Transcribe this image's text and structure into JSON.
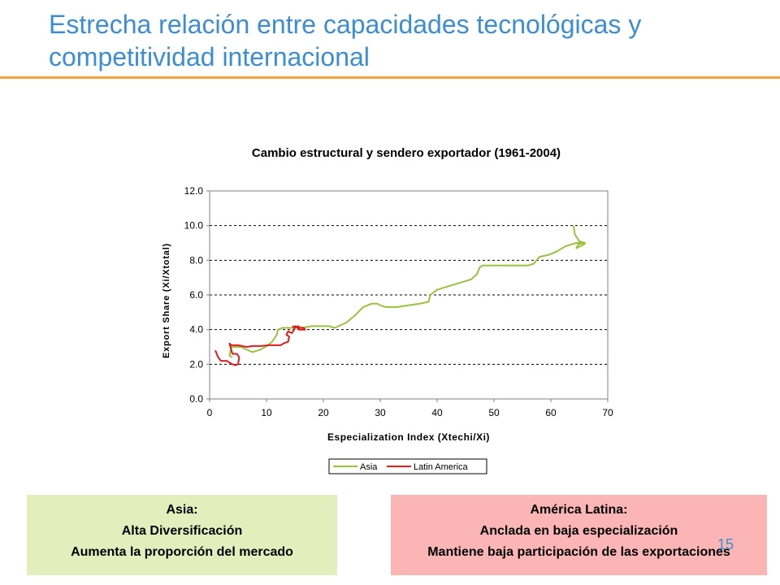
{
  "slide": {
    "title": "Estrecha relación entre capacidades tecnológicas y competitividad internacional",
    "page_number": "15"
  },
  "colors": {
    "title": "#3b8ed4",
    "accent_rule": "#f2a33a",
    "asia": "#99c23a",
    "latin_america": "#e01b1b",
    "asia_box": "#e2efbd",
    "latam_box": "#fbb5b5"
  },
  "boxes": {
    "asia": {
      "heading": "Asia:",
      "line1": "Alta Diversificación",
      "line2": "Aumenta la proporción del mercado"
    },
    "latam": {
      "heading": "América Latina:",
      "line1": "Anclada en baja especialización",
      "line2": "Mantiene baja participación de las exportaciones"
    }
  },
  "chart_data": {
    "type": "line",
    "title": "Cambio estructural y sendero exportador (1961-2004)",
    "xlabel": "Especialization Index (Xtechi/Xi)",
    "ylabel": "Export Share (Xi/Xtotal)",
    "xlim": [
      0,
      70
    ],
    "ylim": [
      0,
      12
    ],
    "xticks": [
      "0",
      "10",
      "20",
      "30",
      "40",
      "50",
      "60",
      "70"
    ],
    "yticks": [
      "0.0",
      "2.0",
      "4.0",
      "6.0",
      "8.0",
      "10.0",
      "12.0"
    ],
    "grid": "horizontal dashed",
    "legend_position": "bottom",
    "series": [
      {
        "name": "Asia",
        "x": [
          4.0,
          3.5,
          3.8,
          5.5,
          7.5,
          9.0,
          10.0,
          11.0,
          11.8,
          12.0,
          12.8,
          14.0,
          16.0,
          18.0,
          19.5,
          21.0,
          22.0,
          24.0,
          25.5,
          27.0,
          28.5,
          29.5,
          30.0,
          31.0,
          32.0,
          33.0,
          35.0,
          37.0,
          38.5,
          38.8,
          40.0,
          42.0,
          44.0,
          46.0,
          47.0,
          47.5,
          48.0,
          49.0,
          51.0,
          54.0,
          56.0,
          57.0,
          57.5,
          58.0,
          59.5,
          61.0,
          62.5,
          63.5,
          64.5,
          65.2,
          65.8,
          64.8,
          64.5,
          65.8,
          66.0,
          65.0,
          64.2,
          64.0
        ],
        "y": [
          2.4,
          2.5,
          3.0,
          3.0,
          2.7,
          2.85,
          3.05,
          3.3,
          3.7,
          4.0,
          4.1,
          4.1,
          4.1,
          4.2,
          4.2,
          4.2,
          4.1,
          4.4,
          4.8,
          5.3,
          5.5,
          5.5,
          5.4,
          5.3,
          5.3,
          5.3,
          5.4,
          5.5,
          5.6,
          6.0,
          6.3,
          6.5,
          6.7,
          6.9,
          7.2,
          7.6,
          7.7,
          7.7,
          7.7,
          7.7,
          7.7,
          7.8,
          8.0,
          8.2,
          8.3,
          8.5,
          8.8,
          8.9,
          9.0,
          9.0,
          9.0,
          8.9,
          8.7,
          8.9,
          9.0,
          9.1,
          9.5,
          10.0
        ]
      },
      {
        "name": "Latin America",
        "x": [
          1.0,
          1.5,
          2.0,
          3.0,
          4.0,
          4.5,
          5.0,
          5.2,
          4.8,
          4.0,
          3.5,
          3.8,
          5.0,
          6.5,
          7.5,
          9.0,
          10.5,
          12.0,
          12.5,
          13.0,
          13.8,
          14.0,
          13.5,
          13.8,
          14.5,
          15.0,
          15.5,
          16.0,
          16.5,
          16.8,
          15.8,
          15.5,
          15.0,
          14.5
        ],
        "y": [
          2.8,
          2.4,
          2.2,
          2.2,
          2.0,
          1.95,
          2.0,
          2.4,
          2.6,
          2.6,
          3.2,
          3.1,
          3.1,
          3.0,
          3.05,
          3.05,
          3.1,
          3.1,
          3.1,
          3.2,
          3.3,
          3.6,
          3.7,
          3.9,
          3.8,
          4.1,
          4.2,
          4.1,
          4.1,
          4.0,
          4.0,
          4.1,
          4.2,
          4.15
        ]
      }
    ]
  }
}
